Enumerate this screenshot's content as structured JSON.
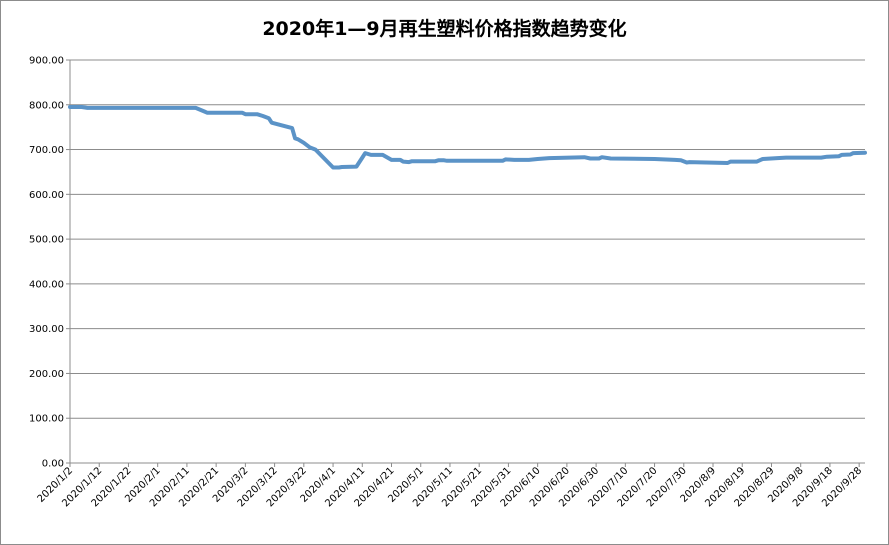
{
  "chart_data": {
    "type": "line",
    "title": "2020年1—9月再生塑料价格指数趋势变化",
    "xlabel": "",
    "ylabel": "",
    "ylim": [
      0,
      900
    ],
    "yticks": [
      "0.00",
      "100.00",
      "200.00",
      "300.00",
      "400.00",
      "500.00",
      "600.00",
      "700.00",
      "800.00",
      "900.00"
    ],
    "grid": true,
    "legend": "none",
    "x_tick_labels": [
      "2020/1/2",
      "2020/1/12",
      "2020/1/22",
      "2020/2/1",
      "2020/2/11",
      "2020/2/21",
      "2020/3/2",
      "2020/3/12",
      "2020/3/22",
      "2020/4/1",
      "2020/4/11",
      "2020/4/21",
      "2020/5/1",
      "2020/5/11",
      "2020/5/21",
      "2020/5/31",
      "2020/6/10",
      "2020/6/20",
      "2020/6/30",
      "2020/7/10",
      "2020/7/20",
      "2020/7/30",
      "2020/8/9",
      "2020/8/19",
      "2020/8/29",
      "2020/9/8",
      "2020/9/18",
      "2020/9/28"
    ],
    "line_color": "#5b93c7",
    "series": [
      {
        "name": "",
        "x": [
          "2020/1/2",
          "2020/1/6",
          "2020/1/8",
          "2020/2/14",
          "2020/2/17",
          "2020/2/18",
          "2020/3/1",
          "2020/3/2",
          "2020/3/6",
          "2020/3/8",
          "2020/3/10",
          "2020/3/11",
          "2020/3/18",
          "2020/3/19",
          "2020/3/20",
          "2020/3/22",
          "2020/3/24",
          "2020/3/26",
          "2020/4/1",
          "2020/4/3",
          "2020/4/4",
          "2020/4/9",
          "2020/4/11",
          "2020/4/12",
          "2020/4/14",
          "2020/4/18",
          "2020/4/21",
          "2020/4/24",
          "2020/4/25",
          "2020/4/27",
          "2020/4/28",
          "2020/5/6",
          "2020/5/7",
          "2020/5/9",
          "2020/5/10",
          "2020/5/29",
          "2020/5/30",
          "2020/6/2",
          "2020/6/7",
          "2020/6/10",
          "2020/6/14",
          "2020/6/26",
          "2020/6/28",
          "2020/6/29",
          "2020/7/1",
          "2020/7/2",
          "2020/7/5",
          "2020/7/20",
          "2020/7/27",
          "2020/7/29",
          "2020/7/31",
          "2020/8/1",
          "2020/8/14",
          "2020/8/15",
          "2020/8/24",
          "2020/8/26",
          "2020/8/31",
          "2020/9/3",
          "2020/9/15",
          "2020/9/17",
          "2020/9/21",
          "2020/9/22",
          "2020/9/25",
          "2020/9/26",
          "2020/9/30"
        ],
        "values": [
          795,
          795,
          793,
          793,
          785,
          782,
          782,
          779,
          779,
          775,
          770,
          760,
          748,
          725,
          723,
          715,
          705,
          700,
          660,
          660,
          661,
          662,
          682,
          692,
          688,
          688,
          677,
          677,
          673,
          672,
          674,
          674,
          676,
          676,
          675,
          675,
          678,
          677,
          677,
          679,
          681,
          683,
          680,
          680,
          680,
          683,
          680,
          679,
          677,
          676,
          671,
          672,
          670,
          673,
          673,
          679,
          681,
          682,
          682,
          684,
          685,
          688,
          689,
          692,
          693
        ]
      }
    ]
  }
}
